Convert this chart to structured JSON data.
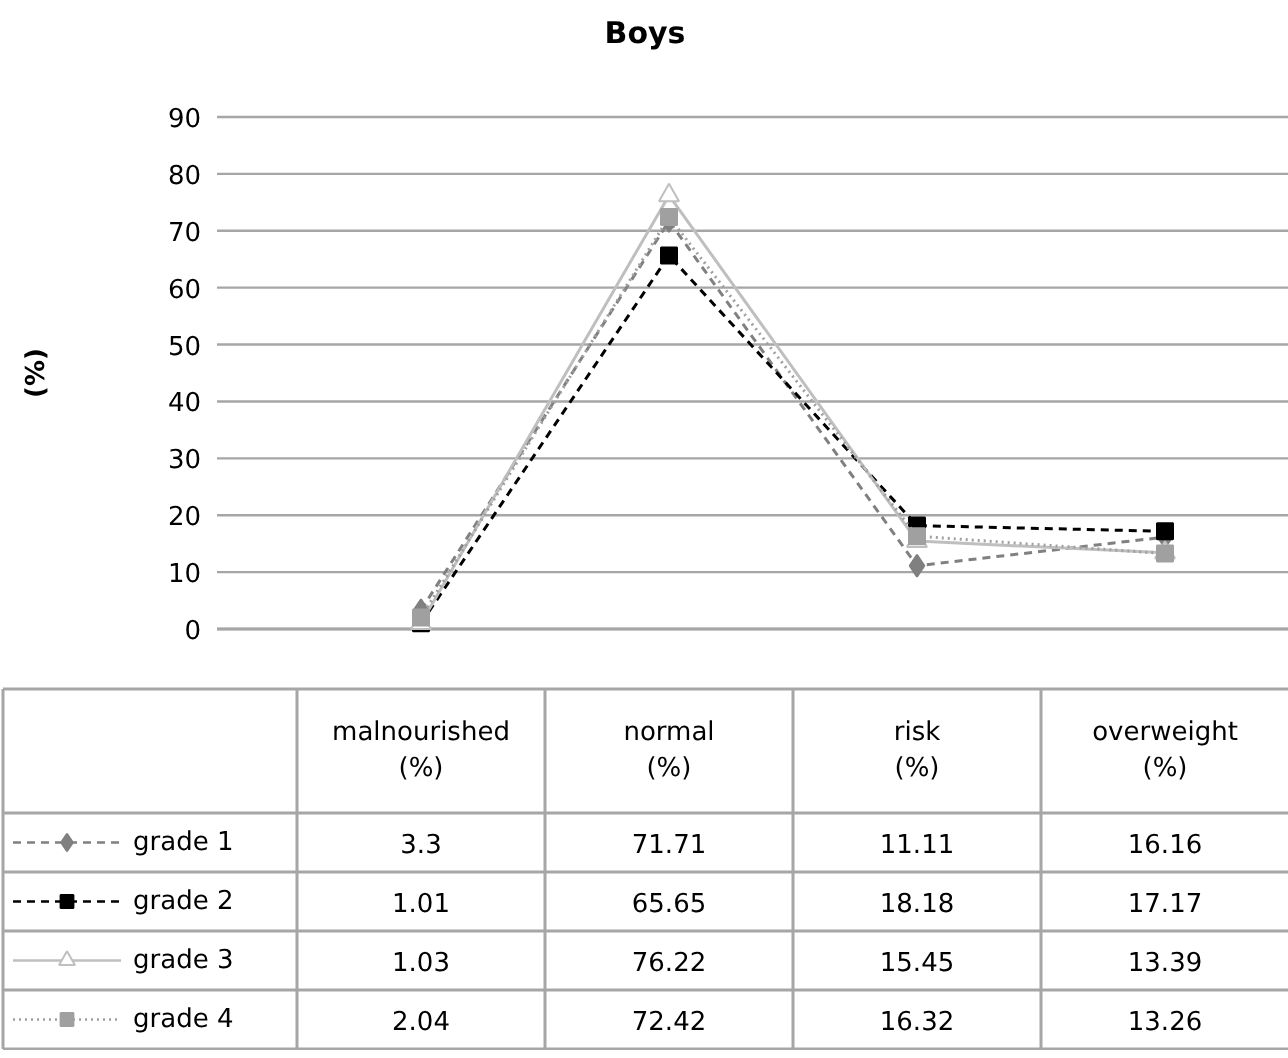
{
  "chart_data": {
    "type": "line",
    "title": "Boys",
    "ylabel": "(%)",
    "categories": [
      "malnourished\n(%)",
      "normal\n(%)",
      "risk\n(%)",
      "overweight\n(%)"
    ],
    "series": [
      {
        "name": "grade 1",
        "color": "#808080",
        "marker": "diamond",
        "line_style": "dashed",
        "values": [
          3.3,
          71.71,
          11.11,
          16.16
        ]
      },
      {
        "name": "grade 2",
        "color": "#000000",
        "marker": "square",
        "line_style": "dashed",
        "values": [
          1.01,
          65.65,
          18.18,
          17.17
        ]
      },
      {
        "name": "grade 3",
        "color": "#bfbfbf",
        "marker": "triangle",
        "line_style": "solid",
        "values": [
          1.03,
          76.22,
          15.45,
          13.39
        ]
      },
      {
        "name": "grade 4",
        "color": "#a0a0a0",
        "marker": "square",
        "line_style": "dotted",
        "values": [
          2.04,
          72.42,
          16.32,
          13.26
        ]
      }
    ],
    "ylim": [
      0,
      90
    ],
    "yticks": [
      0,
      10,
      20,
      30,
      40,
      50,
      60,
      70,
      80,
      90
    ],
    "grid": "y",
    "legend": "bottom",
    "data_labels": true
  }
}
